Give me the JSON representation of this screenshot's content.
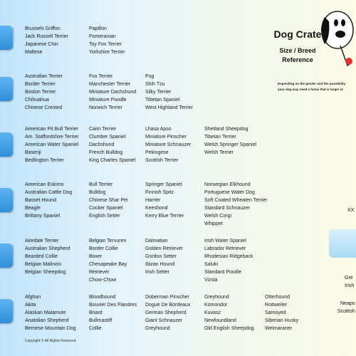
{
  "header": {
    "title": "Dog Crate",
    "subtitle_1": "Size / Breed",
    "subtitle_2": "Reference",
    "note_1": "Depending on the gender and the possibility",
    "note_2": "your dog may need a home that is larger or"
  },
  "rows": [
    [
      [
        "Brussels Griffon",
        "Jack Russell Terrier",
        "Japanese Chin",
        "Maltese"
      ],
      [
        "Papillon",
        "Pomeranian",
        "Toy Fox Terrier",
        "Yorkshire Terrier"
      ]
    ],
    [
      [
        "Australian Terrier",
        "Border Terrier",
        "Boston Terrier",
        "Chihuahua",
        "Chinese Crested"
      ],
      [
        "Fox Terrier",
        "Manchester Terrier",
        "Miniature Dachshund",
        "Miniature Poodle",
        "Norwich Terrier"
      ],
      [
        "Pug",
        "Shih Tzu",
        "Silky Terrier",
        "Tibetan Spaniel",
        "West Highland Terrier"
      ]
    ],
    [
      [
        "American Pit Bull Terrier",
        "Am. Staffordshire Terrier",
        "American Water Spaniel",
        "Basenji",
        "Bedlington Terrier"
      ],
      [
        "Cairn Terrier",
        "Clumber Spaniel",
        "Dachshund",
        "French Bulldog",
        "King Charles Spaniel"
      ],
      [
        "Lhasa Apso",
        "Miniature Pinscher",
        "Miniature Schnauzer",
        "Pekingese",
        "Scottish Terrier"
      ],
      [
        "Shetland Sheepdog",
        "Tibetan Terrier",
        "Welsh Springer Spaniel",
        "Welsh Terrier"
      ]
    ],
    [
      [
        "American Eskimo",
        "Australian Cattle Dog",
        "Basset Hound",
        "Beagle",
        "Brittany Spaniel"
      ],
      [
        "Bull Terrier",
        "Bulldog",
        "Chinese Shar Pei",
        "Cocker Spaniel",
        "English Setter"
      ],
      [
        "Springer Spaniel",
        "Finnish Spitz",
        "Harrier",
        "Keeshond",
        "Kerry Blue Terrier"
      ],
      [
        "Norwegian Elkhound",
        "Portuguese Water Dog",
        "Soft Coated Wheaten Terrier",
        "Standard Schnauzer",
        "Welsh Corgi",
        "Whippet"
      ]
    ],
    [
      [
        "Airedale Terrier",
        "Australian Shepherd",
        "Bearded Collie",
        "Belgian Malinois",
        "Belgian Sheepdog"
      ],
      [
        "Belgian Tervuren",
        "Border Collie",
        "Boxer",
        "Chesapeake Bay",
        "Retriever",
        "Chow-Chow"
      ],
      [
        "Dalmatian",
        "Golden Retriever",
        "Gordon Setter",
        "Ibizan Hound",
        "Irish Setter"
      ],
      [
        "Irish Water Spaniel",
        "Labrador Retriever",
        "Rhodesian Ridgeback",
        "Saluki",
        "Standard Poodle",
        "Vizsla"
      ]
    ],
    [
      [
        "Afghan",
        "Akita",
        "Alaskan Malamute",
        "Anatolian Shepherd",
        "Bernese Mountain Dog"
      ],
      [
        "Bloodhound",
        "Bouvier Des Flandres",
        "Briard",
        "Bullmastiff",
        "Collie"
      ],
      [
        "Doberman Pinscher",
        "Dogue De Bordeaux",
        "German Shepherd",
        "Giant Schnauzer",
        "Greyhound"
      ],
      [
        "Greyhound",
        "Komondor",
        "Kuvasz",
        "Newfoundland",
        "Old English Sheepdog"
      ],
      [
        "Otterhound",
        "Rottweiler",
        "Samoyed",
        "Siberian Husky",
        "Weimaraner"
      ]
    ]
  ],
  "edge_texts": [
    "XX",
    "Gre",
    "Irish",
    "Neapo",
    "Scottish"
  ],
  "footer": "Copyright © All Rights Reserved"
}
